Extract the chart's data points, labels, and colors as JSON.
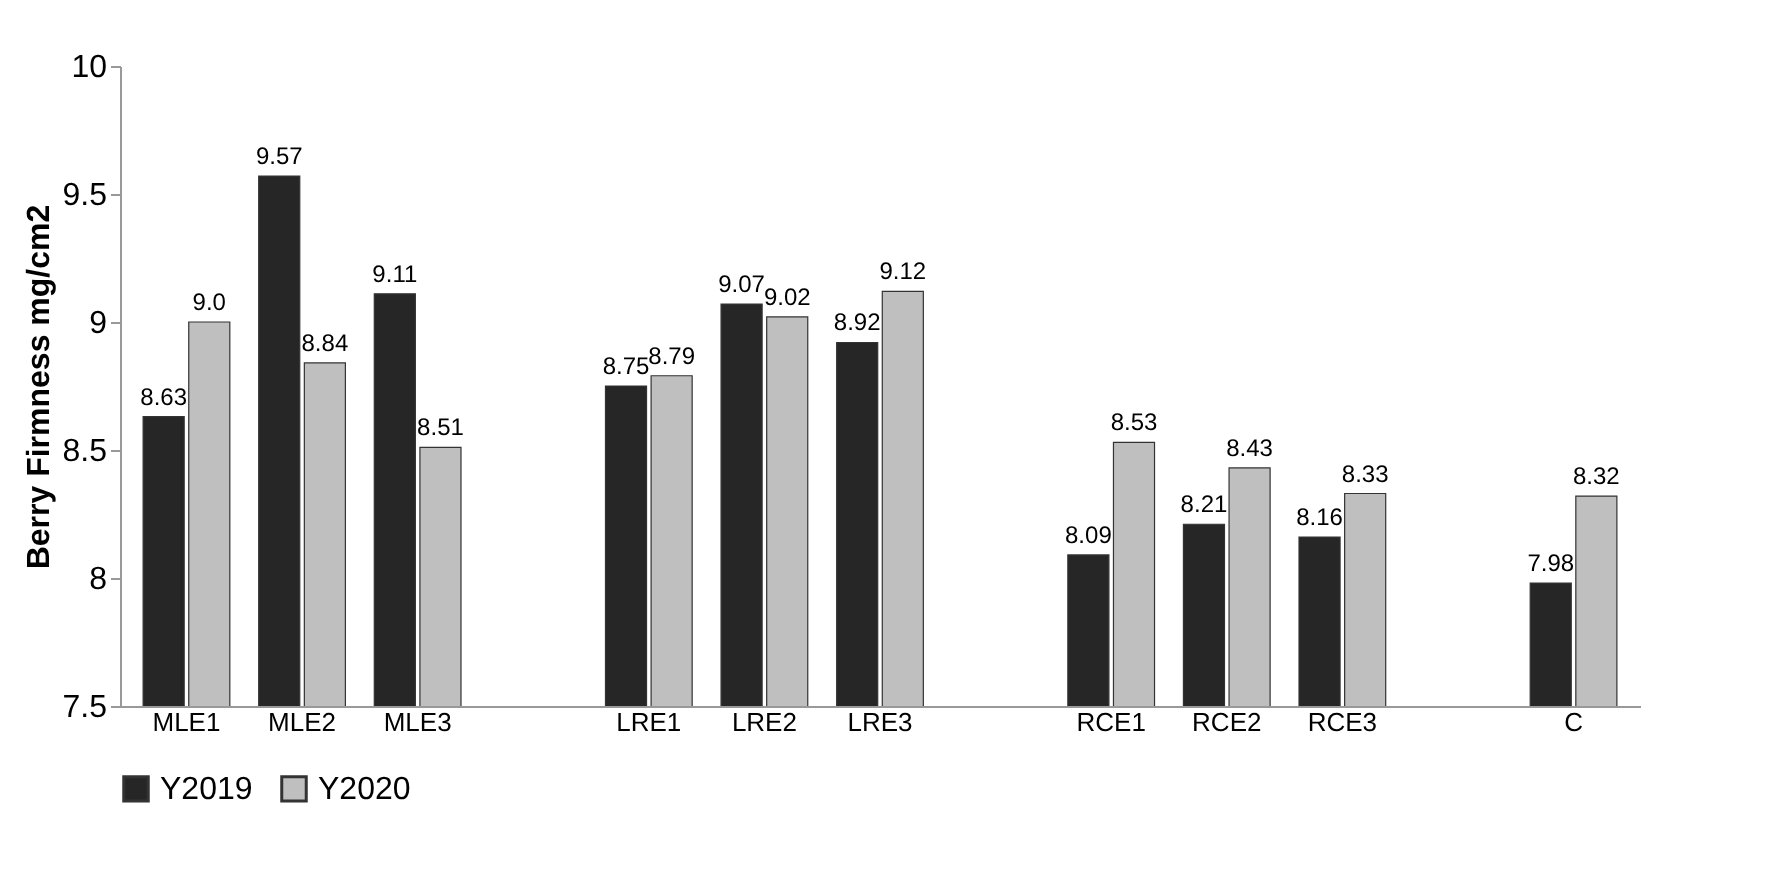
{
  "chart_data": {
    "type": "bar",
    "ylabel": "Berry Firmness mg/cm2",
    "categories": [
      "MLE1",
      "MLE2",
      "MLE3",
      null,
      "LRE1",
      "LRE2",
      "LRE3",
      null,
      "RCE1",
      "RCE2",
      "RCE3",
      null,
      "C"
    ],
    "series": [
      {
        "name": "Y2019",
        "color": "#262626",
        "values": [
          8.63,
          9.57,
          9.11,
          null,
          8.75,
          9.07,
          8.92,
          null,
          8.09,
          8.21,
          8.16,
          null,
          7.98
        ],
        "value_labels": [
          "8.63",
          "9.57",
          "9.11",
          null,
          "8.75",
          "9.07",
          "8.92",
          null,
          "8.09",
          "8.21",
          "8.16",
          null,
          "7.98"
        ]
      },
      {
        "name": "Y2020",
        "color": "#bfbfbf",
        "values": [
          9.0,
          8.84,
          8.51,
          null,
          8.79,
          9.02,
          9.12,
          null,
          8.53,
          8.43,
          8.33,
          null,
          8.32
        ],
        "value_labels": [
          "9.0",
          "8.84",
          "8.51",
          null,
          "8.79",
          "9.02",
          "9.12",
          null,
          "8.53",
          "8.43",
          "8.33",
          null,
          "8.32"
        ]
      }
    ],
    "ylim": [
      7.5,
      10
    ],
    "yticks": [
      7.5,
      8,
      8.5,
      9,
      9.5,
      10
    ],
    "grid": false,
    "legend": "bottom"
  }
}
